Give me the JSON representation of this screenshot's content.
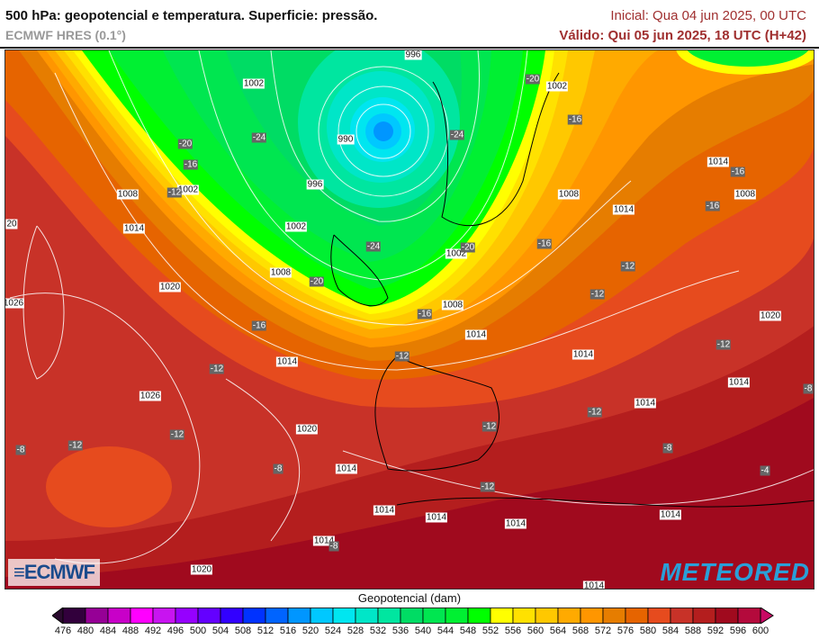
{
  "header": {
    "title": "500 hPa: geopotencial e temperatura. Superficie: pressão.",
    "model": "ECMWF HRES (0.1°)",
    "initial": "Inicial: Qua 04 jun 2025, 00 UTC",
    "valid": "Válido: Qui 05 jun 2025, 18 UTC (H+42)"
  },
  "logos": {
    "left": "ECMWF",
    "right": "METEORED"
  },
  "colorbar": {
    "title": "Geopotencial (dam)",
    "ticks": [
      "476",
      "480",
      "484",
      "488",
      "492",
      "496",
      "500",
      "504",
      "508",
      "512",
      "516",
      "520",
      "524",
      "528",
      "532",
      "536",
      "540",
      "544",
      "548",
      "552",
      "556",
      "560",
      "564",
      "568",
      "572",
      "576",
      "580",
      "584",
      "588",
      "592",
      "596",
      "600"
    ],
    "under_color": "#2a0a2e",
    "over_color": "#c80a64",
    "colors": [
      "#32003c",
      "#960096",
      "#c800c8",
      "#ff00ff",
      "#c814f0",
      "#9600ff",
      "#6400ff",
      "#3200ff",
      "#0032ff",
      "#0064ff",
      "#0096ff",
      "#00c8ff",
      "#00e6f0",
      "#00e6c8",
      "#00e6a0",
      "#00dc64",
      "#00e650",
      "#00f032",
      "#00ff00",
      "#ffff00",
      "#ffe100",
      "#ffc800",
      "#ffaa00",
      "#ff9600",
      "#e67d00",
      "#e66400",
      "#e64b1e",
      "#c83228",
      "#b41e1e",
      "#a00a1e",
      "#b40a3c"
    ]
  },
  "map": {
    "pressure_labels": [
      "996",
      "1002",
      "1002",
      "990",
      "996",
      "1002",
      "1008",
      "1008",
      "1014",
      "1002",
      "1014",
      "1008",
      "1014",
      "1002",
      "1008",
      "1020",
      "1008",
      "1026",
      "1014",
      "1020",
      "1014",
      "1014",
      "1026",
      "1014",
      "1014",
      "1020",
      "1014",
      "1014",
      "1014",
      "1014",
      "1014",
      "1014",
      "1020",
      "1014",
      "20"
    ],
    "temperature_labels": [
      "-20",
      "-16",
      "-20",
      "-24",
      "-16",
      "-12",
      "-24",
      "-20",
      "-16",
      "-24",
      "-20",
      "-16",
      "-12",
      "-12",
      "-16",
      "-12",
      "-12",
      "-16",
      "-16",
      "-12",
      "-12",
      "-12",
      "-8",
      "-12",
      "-12",
      "-8",
      "-12",
      "-8",
      "-8",
      "-4",
      "-8"
    ]
  }
}
